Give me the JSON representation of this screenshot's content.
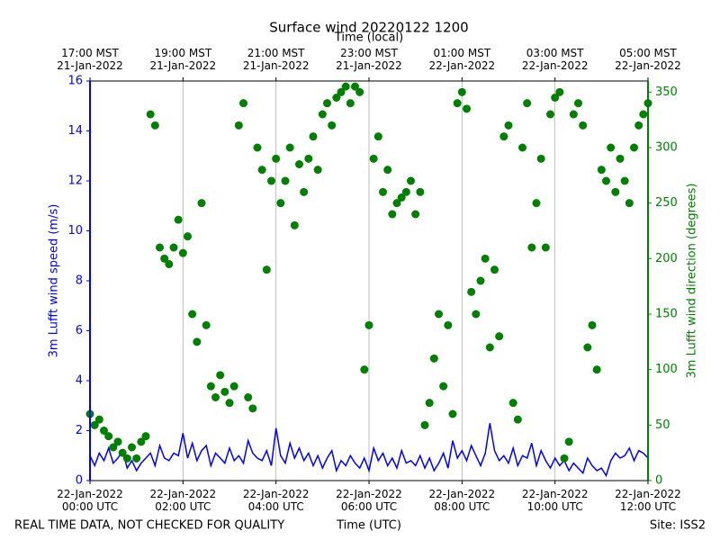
{
  "chart_data": {
    "type": "line",
    "title": "Surface wind 20220122 1200",
    "xlabel": "Time (UTC)",
    "x2label": "Time (local)",
    "ylabel": "3m Lufft wind speed (m/s)",
    "y2label": "3m Lufft wind direction (degrees)",
    "footer_left": "REAL TIME DATA, NOT CHECKED FOR QUALITY",
    "footer_right": "Site: ISS2",
    "grid": true,
    "xlim": [
      "2022-01-22T00:00",
      "2022-01-22T12:00"
    ],
    "xticks": [
      {
        "value": "2022-01-22T00:00",
        "label": "22-Jan-2022\n00:00 UTC"
      },
      {
        "value": "2022-01-22T02:00",
        "label": "22-Jan-2022\n02:00 UTC"
      },
      {
        "value": "2022-01-22T04:00",
        "label": "22-Jan-2022\n04:00 UTC"
      },
      {
        "value": "2022-01-22T06:00",
        "label": "22-Jan-2022\n06:00 UTC"
      },
      {
        "value": "2022-01-22T08:00",
        "label": "22-Jan-2022\n08:00 UTC"
      },
      {
        "value": "2022-01-22T10:00",
        "label": "22-Jan-2022\n10:00 UTC"
      },
      {
        "value": "2022-01-22T12:00",
        "label": "22-Jan-2022\n12:00 UTC"
      }
    ],
    "x2ticks": [
      {
        "value": "2022-01-22T00:00",
        "label": "17:00 MST\n21-Jan-2022"
      },
      {
        "value": "2022-01-22T02:00",
        "label": "19:00 MST\n21-Jan-2022"
      },
      {
        "value": "2022-01-22T04:00",
        "label": "21:00 MST\n21-Jan-2022"
      },
      {
        "value": "2022-01-22T06:00",
        "label": "23:00 MST\n21-Jan-2022"
      },
      {
        "value": "2022-01-22T08:00",
        "label": "01:00 MST\n22-Jan-2022"
      },
      {
        "value": "2022-01-22T10:00",
        "label": "03:00 MST\n22-Jan-2022"
      },
      {
        "value": "2022-01-22T12:00",
        "label": "05:00 MST\n22-Jan-2022"
      }
    ],
    "ylim": [
      0,
      16
    ],
    "yticks": [
      0,
      2,
      4,
      6,
      8,
      10,
      12,
      14,
      16
    ],
    "y2lim": [
      0,
      360
    ],
    "y2ticks": [
      0,
      50,
      100,
      150,
      200,
      250,
      300,
      350
    ],
    "x": [
      "2022-01-22T00:00",
      "2022-01-22T00:06",
      "2022-01-22T00:12",
      "2022-01-22T00:18",
      "2022-01-22T00:24",
      "2022-01-22T00:30",
      "2022-01-22T00:36",
      "2022-01-22T00:42",
      "2022-01-22T00:48",
      "2022-01-22T00:54",
      "2022-01-22T01:00",
      "2022-01-22T01:06",
      "2022-01-22T01:12",
      "2022-01-22T01:18",
      "2022-01-22T01:24",
      "2022-01-22T01:30",
      "2022-01-22T01:36",
      "2022-01-22T01:42",
      "2022-01-22T01:48",
      "2022-01-22T01:54",
      "2022-01-22T02:00",
      "2022-01-22T02:06",
      "2022-01-22T02:12",
      "2022-01-22T02:18",
      "2022-01-22T02:24",
      "2022-01-22T02:30",
      "2022-01-22T02:36",
      "2022-01-22T02:42",
      "2022-01-22T02:48",
      "2022-01-22T02:54",
      "2022-01-22T03:00",
      "2022-01-22T03:06",
      "2022-01-22T03:12",
      "2022-01-22T03:18",
      "2022-01-22T03:24",
      "2022-01-22T03:30",
      "2022-01-22T03:36",
      "2022-01-22T03:42",
      "2022-01-22T03:48",
      "2022-01-22T03:54",
      "2022-01-22T04:00",
      "2022-01-22T04:06",
      "2022-01-22T04:12",
      "2022-01-22T04:18",
      "2022-01-22T04:24",
      "2022-01-22T04:30",
      "2022-01-22T04:36",
      "2022-01-22T04:42",
      "2022-01-22T04:48",
      "2022-01-22T04:54",
      "2022-01-22T05:00",
      "2022-01-22T05:06",
      "2022-01-22T05:12",
      "2022-01-22T05:18",
      "2022-01-22T05:24",
      "2022-01-22T05:30",
      "2022-01-22T05:36",
      "2022-01-22T05:42",
      "2022-01-22T05:48",
      "2022-01-22T05:54",
      "2022-01-22T06:00",
      "2022-01-22T06:06",
      "2022-01-22T06:12",
      "2022-01-22T06:18",
      "2022-01-22T06:24",
      "2022-01-22T06:30",
      "2022-01-22T06:36",
      "2022-01-22T06:42",
      "2022-01-22T06:48",
      "2022-01-22T06:54",
      "2022-01-22T07:00",
      "2022-01-22T07:06",
      "2022-01-22T07:12",
      "2022-01-22T07:18",
      "2022-01-22T07:24",
      "2022-01-22T07:30",
      "2022-01-22T07:36",
      "2022-01-22T07:42",
      "2022-01-22T07:48",
      "2022-01-22T07:54",
      "2022-01-22T08:00",
      "2022-01-22T08:06",
      "2022-01-22T08:12",
      "2022-01-22T08:18",
      "2022-01-22T08:24",
      "2022-01-22T08:30",
      "2022-01-22T08:36",
      "2022-01-22T08:42",
      "2022-01-22T08:48",
      "2022-01-22T08:54",
      "2022-01-22T09:00",
      "2022-01-22T09:06",
      "2022-01-22T09:12",
      "2022-01-22T09:18",
      "2022-01-22T09:24",
      "2022-01-22T09:30",
      "2022-01-22T09:36",
      "2022-01-22T09:42",
      "2022-01-22T09:48",
      "2022-01-22T09:54",
      "2022-01-22T10:00",
      "2022-01-22T10:06",
      "2022-01-22T10:12",
      "2022-01-22T10:18",
      "2022-01-22T10:24",
      "2022-01-22T10:30",
      "2022-01-22T10:36",
      "2022-01-22T10:42",
      "2022-01-22T10:48",
      "2022-01-22T10:54",
      "2022-01-22T11:00",
      "2022-01-22T11:06",
      "2022-01-22T11:12",
      "2022-01-22T11:18",
      "2022-01-22T11:24",
      "2022-01-22T11:30",
      "2022-01-22T11:36",
      "2022-01-22T11:42",
      "2022-01-22T11:48",
      "2022-01-22T11:54",
      "2022-01-22T12:00"
    ],
    "series": [
      {
        "color": "#0000ff",
        "values": [
          1.0,
          0.6,
          1.1,
          0.8,
          1.3,
          0.7,
          0.9,
          1.2,
          0.5,
          0.8,
          0.4,
          0.7,
          0.9,
          1.1,
          0.6,
          1.4,
          0.9,
          0.8,
          1.1,
          1.0,
          1.9,
          0.9,
          1.5,
          0.8,
          1.2,
          1.4,
          0.6,
          1.1,
          0.9,
          0.7,
          1.3,
          0.8,
          1.0,
          0.7,
          1.6,
          1.1,
          0.9,
          0.8,
          1.2,
          0.6,
          2.1,
          1.0,
          0.7,
          1.5,
          0.9,
          1.3,
          0.8,
          1.1,
          0.6,
          1.0,
          0.5,
          0.9,
          1.2,
          0.4,
          0.8,
          0.6,
          1.0,
          0.7,
          0.5,
          0.9,
          0.4,
          1.3,
          0.8,
          1.1,
          0.6,
          0.9,
          0.5,
          1.2,
          0.7,
          0.8,
          0.6,
          1.0,
          0.5,
          0.9,
          0.4,
          0.7,
          1.1,
          0.5,
          1.6,
          0.9,
          1.2,
          0.8,
          1.4,
          1.0,
          0.6,
          1.1,
          2.3,
          1.2,
          0.8,
          1.0,
          0.7,
          1.3,
          0.6,
          1.0,
          0.9,
          1.5,
          0.6,
          1.2,
          0.8,
          0.5,
          0.9,
          0.6,
          0.8,
          0.4,
          0.7,
          0.5,
          0.3,
          0.9,
          0.6,
          0.4,
          0.5,
          0.2,
          0.8,
          1.1,
          0.9,
          1.0,
          1.3,
          0.8,
          1.2,
          1.1,
          0.9
        ]
      },
      {
        "type": "scatter",
        "axis": "y2",
        "color": "#008000",
        "values": [
          60,
          50,
          55,
          45,
          40,
          30,
          35,
          25,
          20,
          30,
          20,
          35,
          40,
          330,
          320,
          210,
          200,
          195,
          210,
          235,
          205,
          220,
          150,
          125,
          250,
          140,
          85,
          75,
          95,
          80,
          70,
          85,
          320,
          340,
          75,
          65,
          300,
          280,
          190,
          270,
          290,
          250,
          270,
          300,
          230,
          285,
          260,
          290,
          310,
          280,
          330,
          340,
          320,
          345,
          350,
          355,
          340,
          355,
          350,
          100,
          140,
          290,
          310,
          260,
          280,
          240,
          250,
          255,
          260,
          270,
          240,
          260,
          50,
          70,
          110,
          150,
          85,
          140,
          60,
          340,
          350,
          335,
          170,
          150,
          180,
          200,
          120,
          190,
          130,
          310,
          320,
          70,
          55,
          300,
          340,
          210,
          250,
          290,
          210,
          330,
          345,
          350,
          20,
          35,
          330,
          340,
          320,
          120,
          140,
          100,
          280,
          270,
          300,
          260,
          290,
          270,
          250,
          300,
          320,
          330,
          340
        ]
      }
    ]
  }
}
